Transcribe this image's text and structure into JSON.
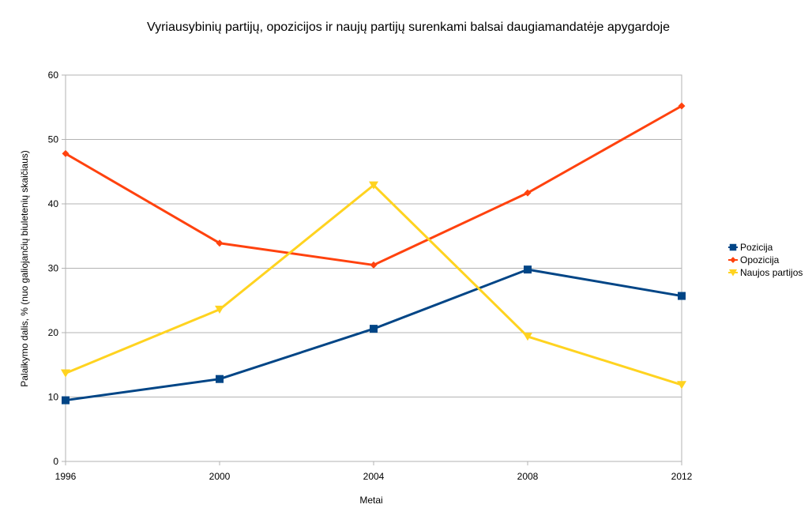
{
  "chart_data": {
    "type": "line",
    "title": "Vyriausybinių partijų, opozicijos ir naujų partijų surenkami balsai daugiamandatėje apygardoje",
    "xlabel": "Metai",
    "ylabel": "Palaikymo dalis, % (nuo galiojančių biuletenių skaičiaus)",
    "categories": [
      "1996",
      "2000",
      "2004",
      "2008",
      "2012"
    ],
    "ylim": [
      0,
      60
    ],
    "yticks": [
      0,
      10,
      20,
      30,
      40,
      50,
      60
    ],
    "grid": true,
    "legend_position": "right",
    "series": [
      {
        "name": "Pozicija",
        "color": "#004586",
        "marker": "square",
        "values": [
          9.5,
          12.8,
          20.6,
          29.8,
          25.7
        ]
      },
      {
        "name": "Opozicija",
        "color": "#ff420e",
        "marker": "diamond",
        "values": [
          47.8,
          33.9,
          30.5,
          41.7,
          55.2
        ]
      },
      {
        "name": "Naujos partijos",
        "color": "#ffd320",
        "marker": "triangle-down",
        "values": [
          13.7,
          23.6,
          42.9,
          19.4,
          11.9
        ]
      }
    ]
  }
}
